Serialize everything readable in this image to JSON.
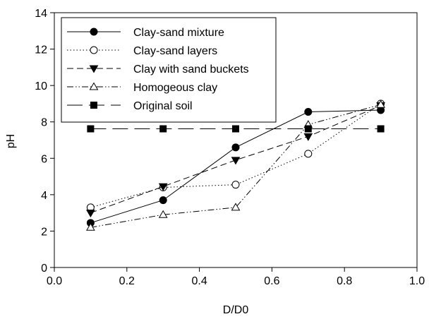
{
  "chart_data": {
    "type": "line",
    "title": "",
    "xlabel": "D/D0",
    "ylabel": "pH",
    "xlim": [
      0.0,
      1.0
    ],
    "ylim": [
      0,
      14
    ],
    "x_ticks": [
      "0.0",
      "0.2",
      "0.4",
      "0.6",
      "0.8",
      "1.0"
    ],
    "y_ticks": [
      "0",
      "2",
      "4",
      "6",
      "8",
      "10",
      "12",
      "14"
    ],
    "grid": false,
    "legend_position": "top-left",
    "series": [
      {
        "name": "Clay-sand mixture",
        "marker": "filled-circle",
        "line_style": "solid",
        "x": [
          0.1,
          0.3,
          0.5,
          0.7,
          0.9
        ],
        "y": [
          2.45,
          3.7,
          6.6,
          8.55,
          8.65
        ]
      },
      {
        "name": "Clay-sand layers",
        "marker": "open-circle",
        "line_style": "dotted",
        "x": [
          0.1,
          0.3,
          0.5,
          0.7,
          0.9
        ],
        "y": [
          3.3,
          4.4,
          4.55,
          6.25,
          9.0
        ]
      },
      {
        "name": "Clay with sand buckets",
        "marker": "filled-triangle-down",
        "line_style": "dashed",
        "x": [
          0.1,
          0.3,
          0.5,
          0.7,
          0.9
        ],
        "y": [
          3.0,
          4.45,
          5.9,
          7.2,
          8.9
        ]
      },
      {
        "name": "Homogeous clay",
        "marker": "open-triangle-up",
        "line_style": "dash-dot-dot",
        "x": [
          0.1,
          0.3,
          0.5,
          0.7,
          0.9
        ],
        "y": [
          2.2,
          2.9,
          3.3,
          7.85,
          8.95
        ]
      },
      {
        "name": "Original soil",
        "marker": "filled-square",
        "line_style": "long-dash",
        "x": [
          0.1,
          0.3,
          0.5,
          0.7,
          0.9
        ],
        "y": [
          7.62,
          7.62,
          7.62,
          7.62,
          7.62
        ]
      }
    ]
  }
}
